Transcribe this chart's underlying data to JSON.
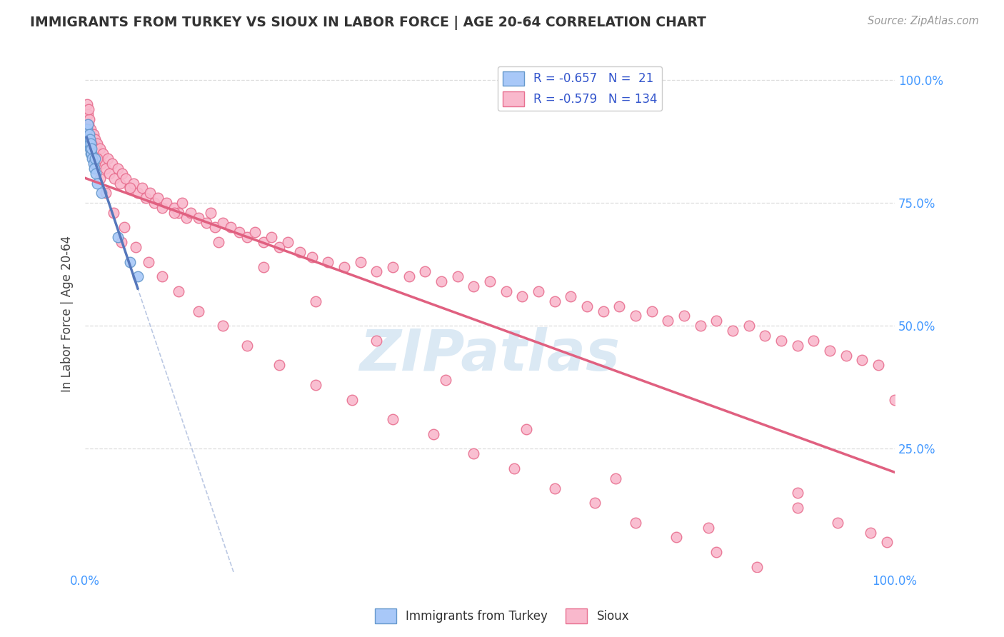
{
  "title": "IMMIGRANTS FROM TURKEY VS SIOUX IN LABOR FORCE | AGE 20-64 CORRELATION CHART",
  "source": "Source: ZipAtlas.com",
  "ylabel": "In Labor Force | Age 20-64",
  "xlim": [
    0.0,
    1.0
  ],
  "ylim": [
    0.0,
    1.05
  ],
  "color_turkey": "#a8c8f8",
  "color_sioux": "#f9b8cc",
  "color_turkey_edge": "#6699cc",
  "color_sioux_edge": "#e87090",
  "color_turkey_line": "#5577bb",
  "color_sioux_line": "#e06080",
  "color_dashed": "#aabbdd",
  "watermark_color": "#cce0f0",
  "turkey_x": [
    0.002,
    0.003,
    0.004,
    0.005,
    0.005,
    0.006,
    0.006,
    0.007,
    0.007,
    0.008,
    0.008,
    0.009,
    0.01,
    0.011,
    0.012,
    0.013,
    0.015,
    0.02,
    0.04,
    0.055,
    0.065
  ],
  "turkey_y": [
    0.9,
    0.91,
    0.88,
    0.89,
    0.87,
    0.86,
    0.88,
    0.85,
    0.87,
    0.85,
    0.86,
    0.84,
    0.83,
    0.82,
    0.84,
    0.81,
    0.79,
    0.77,
    0.68,
    0.63,
    0.6
  ],
  "sioux_x": [
    0.002,
    0.003,
    0.004,
    0.005,
    0.006,
    0.007,
    0.008,
    0.009,
    0.01,
    0.011,
    0.012,
    0.013,
    0.015,
    0.016,
    0.018,
    0.02,
    0.022,
    0.025,
    0.028,
    0.03,
    0.033,
    0.036,
    0.04,
    0.043,
    0.046,
    0.05,
    0.055,
    0.06,
    0.065,
    0.07,
    0.075,
    0.08,
    0.085,
    0.09,
    0.095,
    0.1,
    0.11,
    0.115,
    0.12,
    0.125,
    0.13,
    0.14,
    0.15,
    0.155,
    0.16,
    0.17,
    0.18,
    0.19,
    0.2,
    0.21,
    0.22,
    0.23,
    0.24,
    0.25,
    0.265,
    0.28,
    0.3,
    0.32,
    0.34,
    0.36,
    0.38,
    0.4,
    0.42,
    0.44,
    0.46,
    0.48,
    0.5,
    0.52,
    0.54,
    0.56,
    0.58,
    0.6,
    0.62,
    0.64,
    0.66,
    0.68,
    0.7,
    0.72,
    0.74,
    0.76,
    0.78,
    0.8,
    0.82,
    0.84,
    0.86,
    0.88,
    0.9,
    0.92,
    0.94,
    0.96,
    0.98,
    1.0,
    0.004,
    0.008,
    0.012,
    0.018,
    0.025,
    0.035,
    0.048,
    0.062,
    0.078,
    0.095,
    0.115,
    0.14,
    0.17,
    0.2,
    0.24,
    0.285,
    0.33,
    0.38,
    0.43,
    0.48,
    0.53,
    0.58,
    0.63,
    0.68,
    0.73,
    0.78,
    0.83,
    0.88,
    0.93,
    0.97,
    0.055,
    0.11,
    0.165,
    0.22,
    0.285,
    0.36,
    0.445,
    0.545,
    0.655,
    0.77,
    0.88,
    0.99,
    0.015,
    0.045
  ],
  "sioux_y": [
    0.95,
    0.93,
    0.91,
    0.92,
    0.89,
    0.9,
    0.88,
    0.87,
    0.89,
    0.86,
    0.88,
    0.85,
    0.87,
    0.84,
    0.86,
    0.83,
    0.85,
    0.82,
    0.84,
    0.81,
    0.83,
    0.8,
    0.82,
    0.79,
    0.81,
    0.8,
    0.78,
    0.79,
    0.77,
    0.78,
    0.76,
    0.77,
    0.75,
    0.76,
    0.74,
    0.75,
    0.74,
    0.73,
    0.75,
    0.72,
    0.73,
    0.72,
    0.71,
    0.73,
    0.7,
    0.71,
    0.7,
    0.69,
    0.68,
    0.69,
    0.67,
    0.68,
    0.66,
    0.67,
    0.65,
    0.64,
    0.63,
    0.62,
    0.63,
    0.61,
    0.62,
    0.6,
    0.61,
    0.59,
    0.6,
    0.58,
    0.59,
    0.57,
    0.56,
    0.57,
    0.55,
    0.56,
    0.54,
    0.53,
    0.54,
    0.52,
    0.53,
    0.51,
    0.52,
    0.5,
    0.51,
    0.49,
    0.5,
    0.48,
    0.47,
    0.46,
    0.47,
    0.45,
    0.44,
    0.43,
    0.42,
    0.35,
    0.94,
    0.87,
    0.83,
    0.8,
    0.77,
    0.73,
    0.7,
    0.66,
    0.63,
    0.6,
    0.57,
    0.53,
    0.5,
    0.46,
    0.42,
    0.38,
    0.35,
    0.31,
    0.28,
    0.24,
    0.21,
    0.17,
    0.14,
    0.1,
    0.07,
    0.04,
    0.01,
    0.13,
    0.1,
    0.08,
    0.78,
    0.73,
    0.67,
    0.62,
    0.55,
    0.47,
    0.39,
    0.29,
    0.19,
    0.09,
    0.16,
    0.06,
    0.84,
    0.67
  ]
}
